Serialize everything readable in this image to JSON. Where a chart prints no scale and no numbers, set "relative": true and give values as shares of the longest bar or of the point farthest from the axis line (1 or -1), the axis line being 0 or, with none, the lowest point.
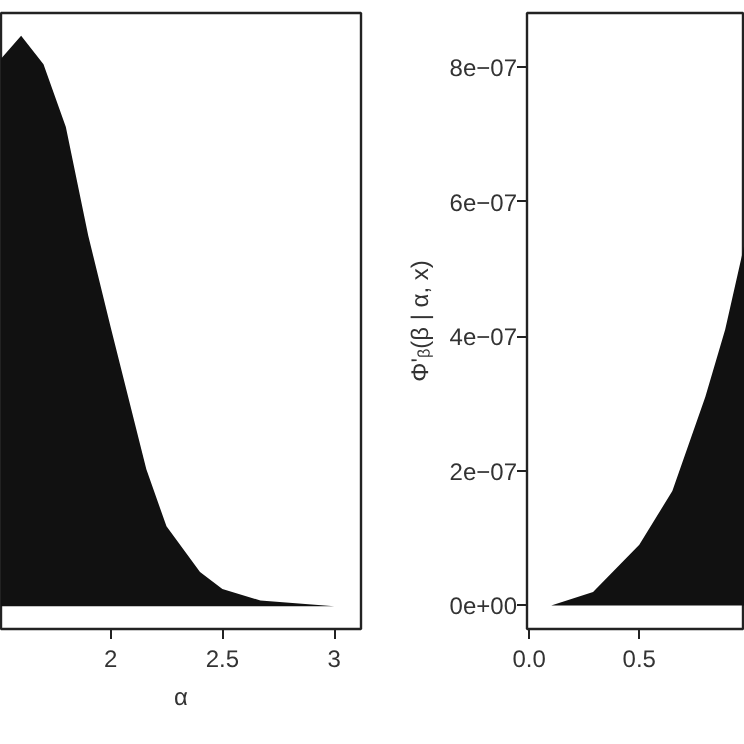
{
  "chart_data": [
    {
      "type": "area",
      "xlabel": "α",
      "relative": true,
      "xlim": [
        1.51,
        3.12
      ],
      "xticks": [
        2.0,
        2.5,
        3.0
      ],
      "tick_labels": "x",
      "grid": false,
      "x": [
        1.51,
        1.6,
        1.7,
        1.8,
        1.9,
        2.0,
        2.16,
        2.25,
        2.4,
        2.5,
        2.67,
        3.0
      ],
      "series": [
        {
          "color": "#111111",
          "values": [
            0.96,
            1.0,
            0.95,
            0.84,
            0.65,
            0.49,
            0.24,
            0.14,
            0.06,
            0.03,
            0.01,
            0.0
          ]
        }
      ]
    },
    {
      "type": "area",
      "ylabel": "Φ'ᵦ(β | α, x)",
      "xlim": [
        -0.01,
        0.98
      ],
      "ylim": [
        -3.5e-08,
        8.8e-07
      ],
      "xticks": [
        {
          "value": 0.0,
          "label": "0.0"
        },
        0.5
      ],
      "yticks": [
        {
          "value": 0,
          "label": "0e+00"
        },
        {
          "value": 2e-07,
          "label": "2e−07"
        },
        {
          "value": 4e-07,
          "label": "4e−07"
        },
        {
          "value": 6e-07,
          "label": "6e−07"
        },
        {
          "value": 8e-07,
          "label": "8e−07"
        }
      ],
      "grid": false,
      "x": [
        0.1,
        0.29,
        0.5,
        0.65,
        0.8,
        0.89,
        0.98
      ],
      "series": [
        {
          "color": "#111111",
          "values": [
            0.0,
            2e-08,
            9e-08,
            1.7e-07,
            3.1e-07,
            4.1e-07,
            5.4e-07
          ]
        }
      ]
    }
  ]
}
